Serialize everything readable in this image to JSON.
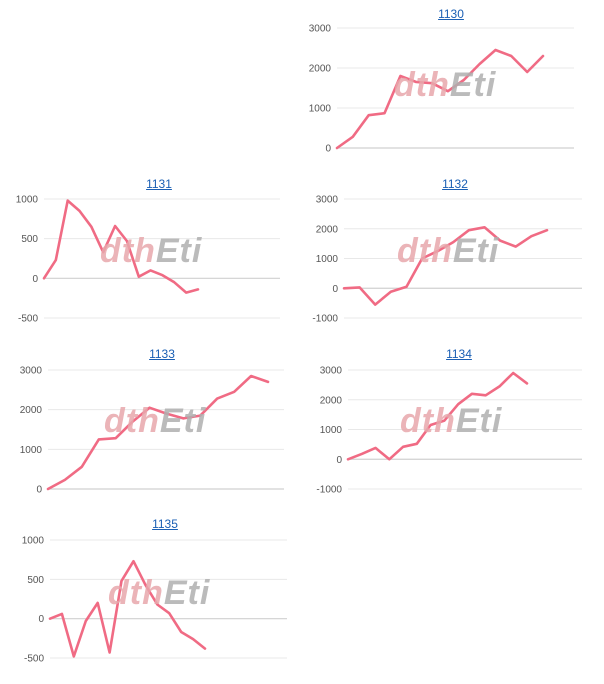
{
  "watermark": {
    "text_left": "dth",
    "text_right": "Eti"
  },
  "colors": {
    "line": "#f06b84",
    "grid": "#e8e8e8",
    "axis": "#d0d0d0",
    "title": "#1a5fb4"
  },
  "chart_data": [
    {
      "type": "line",
      "title": "1130",
      "yticks": [
        0,
        1000,
        2000,
        3000
      ],
      "ylim": [
        0,
        3000
      ],
      "grid": true,
      "values": [
        0,
        280,
        820,
        870,
        1800,
        1650,
        1620,
        1420,
        1700,
        2100,
        2450,
        2300,
        1900,
        2300
      ]
    },
    {
      "type": "line",
      "title": "1131",
      "yticks": [
        -500,
        0,
        500,
        1000
      ],
      "ylim": [
        -500,
        1000
      ],
      "grid": true,
      "values": [
        0,
        230,
        980,
        850,
        650,
        330,
        660,
        470,
        20,
        100,
        40,
        -50,
        -180,
        -140
      ]
    },
    {
      "type": "line",
      "title": "1132",
      "yticks": [
        -1000,
        0,
        1000,
        2000,
        3000
      ],
      "ylim": [
        -1000,
        3000
      ],
      "grid": true,
      "values": [
        0,
        30,
        -550,
        -120,
        50,
        1000,
        1250,
        1550,
        1950,
        2050,
        1600,
        1400,
        1750,
        1950
      ]
    },
    {
      "type": "line",
      "title": "1133",
      "yticks": [
        0,
        1000,
        2000,
        3000
      ],
      "ylim": [
        0,
        3000
      ],
      "grid": true,
      "values": [
        0,
        230,
        560,
        1250,
        1280,
        1700,
        2050,
        1900,
        1780,
        1850,
        2280,
        2450,
        2850,
        2700
      ]
    },
    {
      "type": "line",
      "title": "1134",
      "yticks": [
        -1000,
        0,
        1000,
        2000,
        3000
      ],
      "ylim": [
        -1000,
        3000
      ],
      "grid": true,
      "values": [
        0,
        180,
        380,
        0,
        420,
        520,
        1150,
        1300,
        1850,
        2200,
        2150,
        2450,
        2900,
        2550
      ]
    },
    {
      "type": "line",
      "title": "1135",
      "yticks": [
        -500,
        0,
        500,
        1000
      ],
      "ylim": [
        -500,
        1000
      ],
      "grid": true,
      "values": [
        0,
        60,
        -480,
        -30,
        200,
        -430,
        480,
        730,
        430,
        180,
        70,
        -170,
        -260,
        -380
      ]
    }
  ]
}
